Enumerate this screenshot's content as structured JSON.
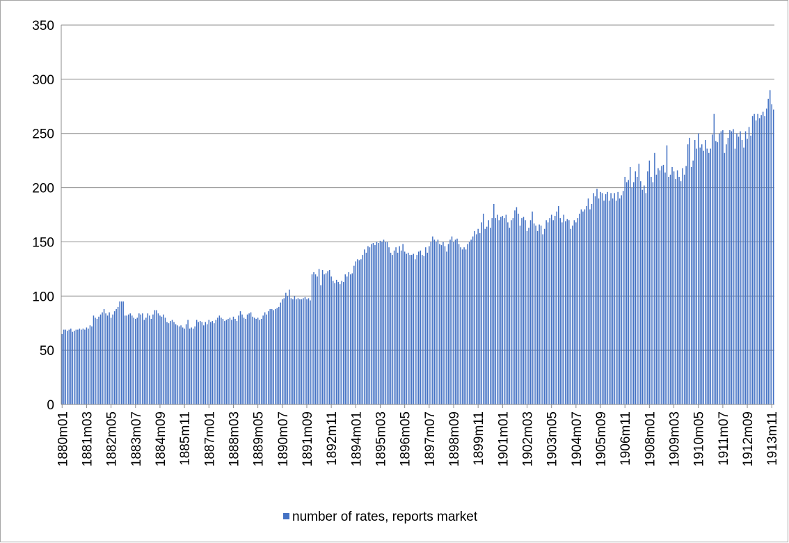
{
  "chart_data": {
    "type": "bar",
    "categories": [
      "1880m01",
      null,
      null,
      null,
      null,
      null,
      null,
      null,
      null,
      null,
      null,
      null,
      null,
      null,
      "1881m03",
      null,
      null,
      null,
      null,
      null,
      null,
      null,
      null,
      null,
      null,
      null,
      null,
      null,
      "1882m05",
      null,
      null,
      null,
      null,
      null,
      null,
      null,
      null,
      null,
      null,
      null,
      null,
      null,
      "1883m07",
      null,
      null,
      null,
      null,
      null,
      null,
      null,
      null,
      null,
      null,
      null,
      null,
      null,
      "1884m09",
      null,
      null,
      null,
      null,
      null,
      null,
      null,
      null,
      null,
      null,
      null,
      null,
      null,
      "1885m11",
      null,
      null,
      null,
      null,
      null,
      null,
      null,
      null,
      null,
      null,
      null,
      null,
      null,
      "1887m01",
      null,
      null,
      null,
      null,
      null,
      null,
      null,
      null,
      null,
      null,
      null,
      null,
      null,
      "1888m03",
      null,
      null,
      null,
      null,
      null,
      null,
      null,
      null,
      null,
      null,
      null,
      null,
      null,
      "1889m05",
      null,
      null,
      null,
      null,
      null,
      null,
      null,
      null,
      null,
      null,
      null,
      null,
      null,
      "1890m07",
      null,
      null,
      null,
      null,
      null,
      null,
      null,
      null,
      null,
      null,
      null,
      null,
      null,
      "1891m09",
      null,
      null,
      null,
      null,
      null,
      null,
      null,
      null,
      null,
      null,
      null,
      null,
      null,
      "1892m11",
      null,
      null,
      null,
      null,
      null,
      null,
      null,
      null,
      null,
      null,
      null,
      null,
      null,
      "1894m01",
      null,
      null,
      null,
      null,
      null,
      null,
      null,
      null,
      null,
      null,
      null,
      null,
      null,
      "1895m03",
      null,
      null,
      null,
      null,
      null,
      null,
      null,
      null,
      null,
      null,
      null,
      null,
      null,
      "1896m05",
      null,
      null,
      null,
      null,
      null,
      null,
      null,
      null,
      null,
      null,
      null,
      null,
      null,
      "1897m07",
      null,
      null,
      null,
      null,
      null,
      null,
      null,
      null,
      null,
      null,
      null,
      null,
      null,
      "1898m09",
      null,
      null,
      null,
      null,
      null,
      null,
      null,
      null,
      null,
      null,
      null,
      null,
      null,
      "1899m11",
      null,
      null,
      null,
      null,
      null,
      null,
      null,
      null,
      null,
      null,
      null,
      null,
      null,
      "1901m01",
      null,
      null,
      null,
      null,
      null,
      null,
      null,
      null,
      null,
      null,
      null,
      null,
      null,
      "1902m03",
      null,
      null,
      null,
      null,
      null,
      null,
      null,
      null,
      null,
      null,
      null,
      null,
      null,
      "1903m05",
      null,
      null,
      null,
      null,
      null,
      null,
      null,
      null,
      null,
      null,
      null,
      null,
      null,
      "1904m07",
      null,
      null,
      null,
      null,
      null,
      null,
      null,
      null,
      null,
      null,
      null,
      null,
      null,
      "1905m09",
      null,
      null,
      null,
      null,
      null,
      null,
      null,
      null,
      null,
      null,
      null,
      null,
      null,
      "1906m11",
      null,
      null,
      null,
      null,
      null,
      null,
      null,
      null,
      null,
      null,
      null,
      null,
      null,
      "1908m01",
      null,
      null,
      null,
      null,
      null,
      null,
      null,
      null,
      null,
      null,
      null,
      null,
      null,
      "1909m03",
      null,
      null,
      null,
      null,
      null,
      null,
      null,
      null,
      null,
      null,
      null,
      null,
      null,
      "1910m05",
      null,
      null,
      null,
      null,
      null,
      null,
      null,
      null,
      null,
      null,
      null,
      null,
      null,
      "1911m07",
      null,
      null,
      null,
      null,
      null,
      null,
      null,
      null,
      null,
      null,
      null,
      null,
      null,
      "1912m09",
      null,
      null,
      null,
      null,
      null,
      null,
      null,
      null,
      null,
      null,
      null,
      null,
      null,
      "1913m11",
      null
    ],
    "series": [
      {
        "name": "number of rates, reports market",
        "color": "#4472c4",
        "values": [
          65,
          69,
          69,
          68,
          69,
          70,
          67,
          68,
          69,
          69,
          70,
          69,
          70,
          69,
          71,
          70,
          73,
          72,
          82,
          80,
          79,
          81,
          83,
          85,
          88,
          84,
          82,
          85,
          80,
          83,
          86,
          88,
          90,
          95,
          95,
          95,
          82,
          82,
          83,
          84,
          82,
          80,
          79,
          80,
          84,
          83,
          84,
          78,
          80,
          84,
          82,
          79,
          83,
          87,
          87,
          84,
          82,
          81,
          83,
          80,
          76,
          75,
          77,
          78,
          76,
          74,
          73,
          72,
          73,
          71,
          70,
          74,
          78,
          70,
          71,
          70,
          72,
          78,
          76,
          77,
          76,
          73,
          76,
          74,
          78,
          76,
          77,
          75,
          78,
          80,
          82,
          80,
          79,
          77,
          78,
          79,
          80,
          78,
          81,
          79,
          77,
          82,
          86,
          83,
          80,
          79,
          83,
          84,
          85,
          81,
          80,
          79,
          80,
          78,
          79,
          82,
          85,
          83,
          86,
          88,
          88,
          87,
          88,
          89,
          90,
          94,
          97,
          98,
          103,
          100,
          106,
          98,
          97,
          100,
          97,
          98,
          97,
          97,
          98,
          99,
          97,
          98,
          96,
          120,
          122,
          120,
          118,
          125,
          110,
          124,
          120,
          121,
          123,
          124,
          118,
          114,
          112,
          115,
          113,
          111,
          114,
          113,
          120,
          118,
          122,
          120,
          121,
          128,
          132,
          134,
          133,
          134,
          138,
          143,
          140,
          146,
          145,
          148,
          149,
          147,
          150,
          149,
          151,
          150,
          152,
          150,
          150,
          145,
          140,
          138,
          142,
          145,
          140,
          146,
          142,
          148,
          141,
          139,
          140,
          138,
          138,
          139,
          134,
          138,
          141,
          142,
          138,
          137,
          145,
          140,
          146,
          150,
          155,
          152,
          150,
          152,
          148,
          147,
          150,
          146,
          141,
          148,
          152,
          155,
          150,
          152,
          153,
          148,
          145,
          143,
          145,
          143,
          148,
          150,
          152,
          155,
          160,
          157,
          162,
          158,
          168,
          176,
          162,
          164,
          170,
          163,
          172,
          185,
          172,
          175,
          170,
          173,
          174,
          172,
          175,
          168,
          163,
          170,
          172,
          179,
          182,
          176,
          165,
          172,
          173,
          170,
          160,
          163,
          170,
          178,
          167,
          165,
          160,
          166,
          165,
          157,
          162,
          170,
          168,
          172,
          175,
          170,
          174,
          178,
          183,
          172,
          168,
          175,
          169,
          171,
          170,
          162,
          165,
          170,
          168,
          172,
          176,
          180,
          178,
          180,
          183,
          190,
          180,
          185,
          195,
          192,
          199,
          190,
          196,
          195,
          188,
          194,
          196,
          188,
          195,
          190,
          195,
          188,
          196,
          190,
          193,
          197,
          210,
          205,
          207,
          219,
          200,
          205,
          215,
          210,
          222,
          206,
          198,
          202,
          195,
          215,
          225,
          210,
          205,
          232,
          212,
          218,
          216,
          220,
          221,
          214,
          239,
          210,
          212,
          219,
          215,
          208,
          216,
          210,
          206,
          218,
          212,
          220,
          240,
          246,
          219,
          225,
          244,
          236,
          250,
          237,
          240,
          234,
          244,
          236,
          232,
          236,
          249,
          268,
          243,
          242,
          250,
          252,
          253,
          232,
          240,
          246,
          253,
          252,
          254,
          236,
          250,
          247,
          252,
          244,
          237,
          252,
          245,
          256,
          248,
          266,
          268,
          262,
          268,
          264,
          267,
          270,
          266,
          273,
          282,
          290,
          277,
          272
        ]
      }
    ],
    "ylim": [
      0,
      350
    ],
    "yticks": [
      0,
      50,
      100,
      150,
      200,
      250,
      300,
      350
    ],
    "grid": true,
    "legend": "bottom"
  }
}
